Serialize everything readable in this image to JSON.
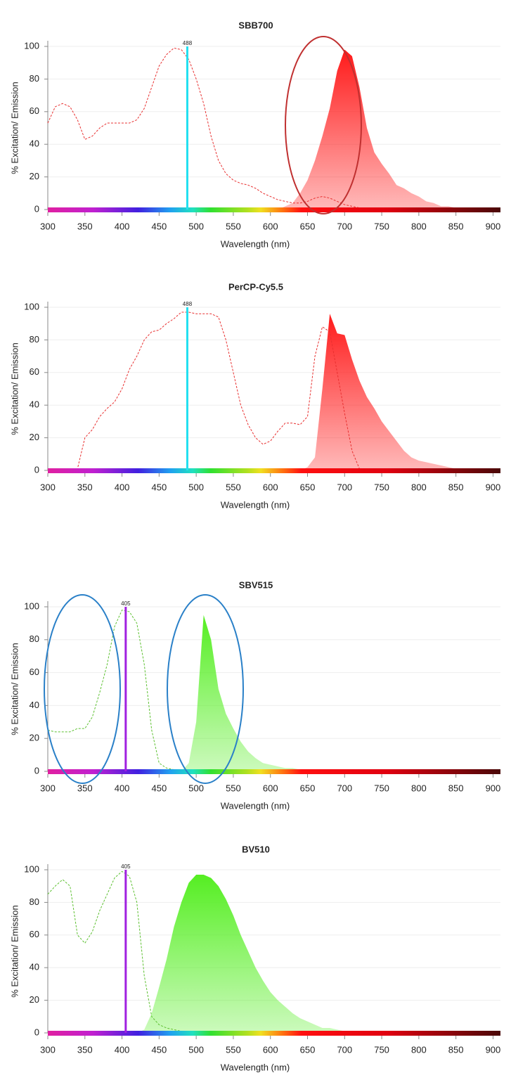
{
  "chart_data": [
    {
      "type": "spectrum",
      "title": "SBB700",
      "xlabel": "Wavelength (nm)",
      "ylabel": "% Excitation/ Emission",
      "xlim": [
        300,
        910
      ],
      "ylim": [
        0,
        100
      ],
      "xticks": [
        300,
        350,
        400,
        450,
        500,
        550,
        600,
        650,
        700,
        750,
        800,
        850,
        900
      ],
      "yticks": [
        0,
        20,
        40,
        60,
        80,
        100
      ],
      "grid": true,
      "x": [
        300,
        310,
        320,
        330,
        340,
        350,
        360,
        370,
        380,
        390,
        400,
        410,
        420,
        430,
        440,
        450,
        460,
        470,
        480,
        490,
        500,
        510,
        520,
        530,
        540,
        550,
        560,
        570,
        580,
        590,
        600,
        610,
        620,
        630,
        640,
        650,
        660,
        670,
        680,
        690,
        700,
        710,
        720,
        730,
        740,
        750,
        760,
        770,
        780,
        790,
        800,
        810,
        820,
        830,
        840,
        850,
        860,
        870,
        880,
        890,
        900
      ],
      "series": [
        {
          "color": "#ff1a1a",
          "fill": true,
          "values": [
            0,
            0,
            0,
            0,
            0,
            0,
            0,
            0,
            0,
            0,
            0,
            0,
            0,
            0,
            0,
            0,
            0,
            0,
            0,
            0,
            0,
            0,
            0,
            0,
            0,
            0,
            0,
            0,
            0,
            0,
            0,
            0,
            2,
            4,
            10,
            18,
            30,
            45,
            62,
            85,
            98,
            94,
            75,
            50,
            35,
            28,
            22,
            15,
            13,
            10,
            8,
            5,
            4,
            2,
            2,
            1,
            1,
            1,
            0,
            0,
            0
          ]
        },
        {
          "color": "#e83030",
          "dash": true,
          "values": [
            53,
            63,
            65,
            63,
            55,
            43,
            45,
            50,
            53,
            53,
            53,
            53,
            55,
            62,
            75,
            88,
            95,
            99,
            98,
            92,
            80,
            65,
            45,
            30,
            22,
            18,
            16,
            15,
            13,
            10,
            8,
            6,
            5,
            4,
            4,
            5,
            7,
            8,
            7,
            5,
            3,
            2,
            1,
            1,
            1,
            1,
            1,
            1,
            1,
            1,
            1,
            1,
            1,
            1,
            1,
            1,
            1,
            1,
            1,
            1,
            1
          ]
        }
      ],
      "laser": 488,
      "laser_color": "#22e0f0"
    },
    {
      "type": "spectrum",
      "title": "PerCP-Cy5.5",
      "xlabel": "Wavelength (nm)",
      "ylabel": "% Excitation/ Emission",
      "xlim": [
        300,
        910
      ],
      "ylim": [
        0,
        100
      ],
      "xticks": [
        300,
        350,
        400,
        450,
        500,
        550,
        600,
        650,
        700,
        750,
        800,
        850,
        900
      ],
      "yticks": [
        0,
        20,
        40,
        60,
        80,
        100
      ],
      "grid": true,
      "x": [
        300,
        310,
        320,
        330,
        340,
        350,
        360,
        370,
        380,
        390,
        400,
        410,
        420,
        430,
        440,
        450,
        460,
        470,
        480,
        490,
        500,
        510,
        520,
        530,
        540,
        550,
        560,
        570,
        580,
        590,
        600,
        610,
        620,
        630,
        640,
        650,
        660,
        670,
        680,
        690,
        700,
        710,
        720,
        730,
        740,
        750,
        760,
        770,
        780,
        790,
        800,
        810,
        820,
        830,
        840,
        850,
        860,
        870,
        880,
        890,
        900
      ],
      "series": [
        {
          "color": "#ff1a1a",
          "fill": true,
          "values": [
            0,
            0,
            0,
            0,
            0,
            0,
            0,
            0,
            0,
            0,
            0,
            0,
            0,
            0,
            0,
            0,
            0,
            0,
            0,
            0,
            0,
            0,
            0,
            0,
            0,
            0,
            0,
            0,
            0,
            0,
            0,
            0,
            0,
            0,
            0,
            2,
            8,
            50,
            96,
            84,
            83,
            68,
            55,
            45,
            38,
            30,
            24,
            18,
            12,
            8,
            6,
            5,
            4,
            3,
            2,
            1,
            0,
            0,
            0,
            0,
            0
          ]
        },
        {
          "color": "#e83030",
          "dash": true,
          "values": [
            1,
            1,
            1,
            1,
            1,
            20,
            25,
            33,
            38,
            42,
            50,
            62,
            70,
            80,
            85,
            86,
            90,
            93,
            97,
            97,
            96,
            96,
            96,
            94,
            80,
            60,
            40,
            28,
            20,
            16,
            18,
            24,
            29,
            29,
            28,
            33,
            70,
            88,
            85,
            60,
            35,
            12,
            1,
            1,
            1,
            1,
            1,
            1,
            1,
            1,
            1,
            1,
            1,
            1,
            1,
            1,
            1,
            1,
            1,
            1,
            1
          ]
        }
      ],
      "laser": 488,
      "laser_color": "#22e0f0"
    },
    {
      "type": "spectrum",
      "title": "SBV515",
      "xlabel": "Wavelength (nm)",
      "ylabel": "% Excitation/ Emission",
      "xlim": [
        300,
        910
      ],
      "ylim": [
        0,
        100
      ],
      "xticks": [
        300,
        350,
        400,
        450,
        500,
        550,
        600,
        650,
        700,
        750,
        800,
        850,
        900
      ],
      "yticks": [
        0,
        20,
        40,
        60,
        80,
        100
      ],
      "grid": true,
      "x": [
        300,
        310,
        320,
        330,
        340,
        350,
        360,
        370,
        380,
        390,
        400,
        410,
        420,
        430,
        440,
        450,
        460,
        470,
        480,
        490,
        500,
        510,
        520,
        530,
        540,
        550,
        560,
        570,
        580,
        590,
        600,
        610,
        620,
        630,
        640,
        650,
        660,
        670,
        680,
        690,
        700,
        710,
        720,
        730,
        740,
        750,
        760,
        770,
        780,
        790,
        800,
        810,
        820,
        830,
        840,
        850,
        860,
        870,
        880,
        890,
        900
      ],
      "series": [
        {
          "color": "#55ee22",
          "fill": true,
          "values": [
            0,
            0,
            0,
            0,
            0,
            0,
            0,
            0,
            0,
            0,
            0,
            0,
            0,
            0,
            0,
            0,
            0,
            0,
            0,
            5,
            30,
            95,
            80,
            50,
            35,
            26,
            18,
            12,
            8,
            5,
            4,
            3,
            2,
            2,
            1,
            1,
            0,
            0,
            0,
            0,
            0,
            0,
            0,
            0,
            0,
            0,
            0,
            0,
            0,
            0,
            0,
            0,
            0,
            0,
            0,
            0,
            0,
            0,
            0,
            0,
            0
          ]
        },
        {
          "color": "#5cc030",
          "dash": true,
          "values": [
            25,
            24,
            24,
            24,
            26,
            26,
            33,
            48,
            65,
            88,
            98,
            97,
            90,
            65,
            25,
            5,
            2,
            1,
            1,
            1,
            1,
            1,
            1,
            1,
            1,
            1,
            1,
            1,
            1,
            1,
            1,
            1,
            1,
            1,
            1,
            1,
            1,
            1,
            1,
            1,
            1,
            1,
            1,
            1,
            1,
            1,
            1,
            1,
            1,
            1,
            1,
            1,
            1,
            1,
            1,
            1,
            1,
            1,
            1,
            1,
            1
          ]
        }
      ],
      "laser": 405,
      "laser_color": "#a020e0"
    },
    {
      "type": "spectrum",
      "title": "BV510",
      "xlabel": "Wavelength (nm)",
      "ylabel": "% Excitation/ Emission",
      "xlim": [
        300,
        910
      ],
      "ylim": [
        0,
        100
      ],
      "xticks": [
        300,
        350,
        400,
        450,
        500,
        550,
        600,
        650,
        700,
        750,
        800,
        850,
        900
      ],
      "yticks": [
        0,
        20,
        40,
        60,
        80,
        100
      ],
      "grid": true,
      "x": [
        300,
        310,
        320,
        330,
        340,
        350,
        360,
        370,
        380,
        390,
        400,
        410,
        420,
        430,
        440,
        450,
        460,
        470,
        480,
        490,
        500,
        510,
        520,
        530,
        540,
        550,
        560,
        570,
        580,
        590,
        600,
        610,
        620,
        630,
        640,
        650,
        660,
        670,
        680,
        690,
        700,
        710,
        720,
        730,
        740,
        750,
        760,
        770,
        780,
        790,
        800,
        810,
        820,
        830,
        840,
        850,
        860,
        870,
        880,
        890,
        900
      ],
      "series": [
        {
          "color": "#55ee22",
          "fill": true,
          "values": [
            0,
            0,
            0,
            0,
            0,
            0,
            0,
            0,
            0,
            0,
            0,
            0,
            0,
            2,
            12,
            28,
            45,
            65,
            80,
            92,
            97,
            97,
            95,
            90,
            82,
            72,
            60,
            50,
            40,
            32,
            25,
            20,
            16,
            12,
            9,
            7,
            5,
            3,
            3,
            2,
            1,
            0,
            0,
            0,
            0,
            0,
            0,
            0,
            0,
            0,
            0,
            0,
            0,
            0,
            0,
            0,
            0,
            0,
            0,
            0,
            0
          ]
        },
        {
          "color": "#5cc030",
          "dash": true,
          "values": [
            85,
            90,
            94,
            90,
            60,
            55,
            62,
            75,
            85,
            95,
            99,
            96,
            80,
            35,
            10,
            5,
            3,
            2,
            1,
            1,
            1,
            1,
            1,
            1,
            1,
            1,
            1,
            1,
            1,
            1,
            1,
            1,
            1,
            1,
            1,
            1,
            1,
            1,
            1,
            1,
            1,
            1,
            1,
            1,
            1,
            1,
            1,
            1,
            1,
            1,
            1,
            1,
            1,
            1,
            1,
            1,
            1,
            1,
            1,
            1,
            1
          ]
        }
      ],
      "laser": 405,
      "laser_color": "#a020e0"
    }
  ]
}
